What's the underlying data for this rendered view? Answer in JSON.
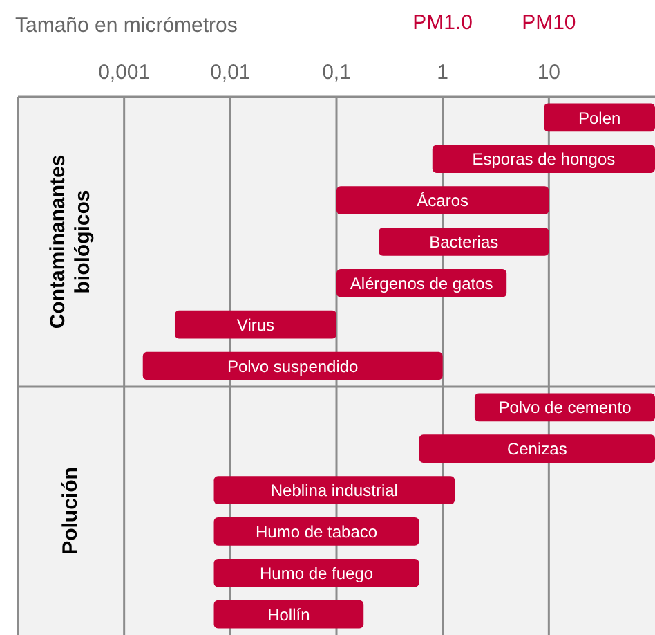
{
  "chart_data": {
    "type": "bar",
    "orientation": "horizontal",
    "xlabel": "Tamaño en micrómetros",
    "categories": [
      "Polen",
      "Esporas de hongos",
      "Ácaros",
      "Bacterias",
      "Alérgenos de gatos",
      "Virus",
      "Polvo suspendido",
      "Polvo de cemento",
      "Cenizas",
      "Neblina industrial",
      "Humo de tabaco",
      "Humo de fuego",
      "Hollín"
    ],
    "base": [
      9,
      0.8,
      0.1,
      0.25,
      0.1,
      0.003,
      0.0015,
      2,
      0.6,
      0.007,
      0.007,
      0.007,
      0.007
    ],
    "values": [
      91,
      99.2,
      9.9,
      9.75,
      3.9,
      0.097,
      0.9985,
      98,
      99.4,
      1.293,
      0.593,
      0.593,
      0.173
    ],
    "color": "#c30037",
    "log": "x",
    "xlim": [
      0.0001,
      100
    ],
    "xticks": [
      {
        "value": 0.001,
        "label": "0,001"
      },
      {
        "value": 0.01,
        "label": "0,01"
      },
      {
        "value": 0.1,
        "label": "0,1"
      },
      {
        "value": 1,
        "label": "1"
      },
      {
        "value": 10,
        "label": "10"
      }
    ],
    "grid": "x",
    "legend": false,
    "tick_labels": "x",
    "annotations": [
      "Contaminanantes biológicos",
      "Polución",
      "PM1.0",
      "PM10"
    ]
  }
}
